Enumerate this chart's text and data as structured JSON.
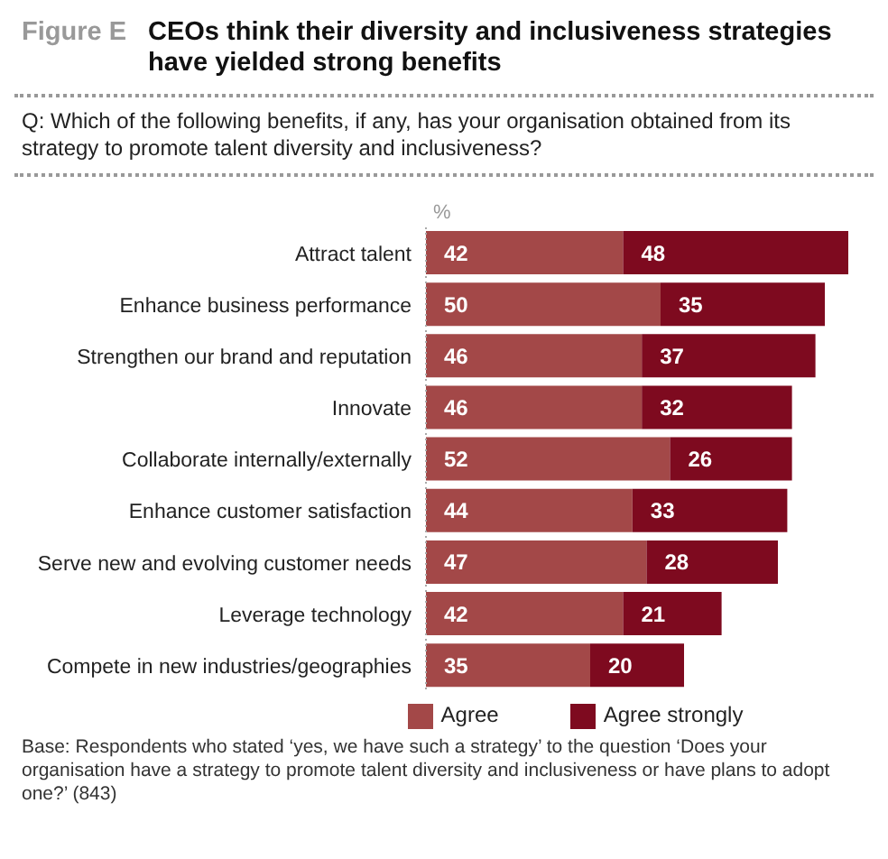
{
  "chart_data": {
    "type": "bar",
    "orientation": "horizontal",
    "stacked": true,
    "title": "CEOs think their diversity and inclusiveness strategies have yielded strong benefits",
    "subtitle": "Q: Which of the following benefits, if any, has your organisation obtained from its strategy to promote talent diversity and inclusiveness?",
    "xlabel": "%",
    "annotations": [
      "Figure E",
      "Base: Respondents who stated ‘yes, we have such a strategy’ to the question ‘Does your organisation have a strategy to promote talent diversity and inclusiveness or have plans to adopt one?’ (843)"
    ],
    "categories": [
      "Attract talent",
      "Enhance business performance",
      "Strengthen our brand and reputation",
      "Innovate",
      "Collaborate internally/externally",
      "Enhance customer satisfaction",
      "Serve new and evolving customer needs",
      "Leverage technology",
      "Compete in new industries/geographies"
    ],
    "series": [
      {
        "name": "Agree",
        "color": "#a34848",
        "values": [
          42,
          50,
          46,
          46,
          52,
          44,
          47,
          42,
          35
        ]
      },
      {
        "name": "Agree strongly",
        "color": "#7e0a1f",
        "values": [
          48,
          35,
          37,
          32,
          26,
          33,
          28,
          21,
          20
        ]
      }
    ],
    "data_labels": true,
    "legend": "bottom",
    "grid": false
  }
}
